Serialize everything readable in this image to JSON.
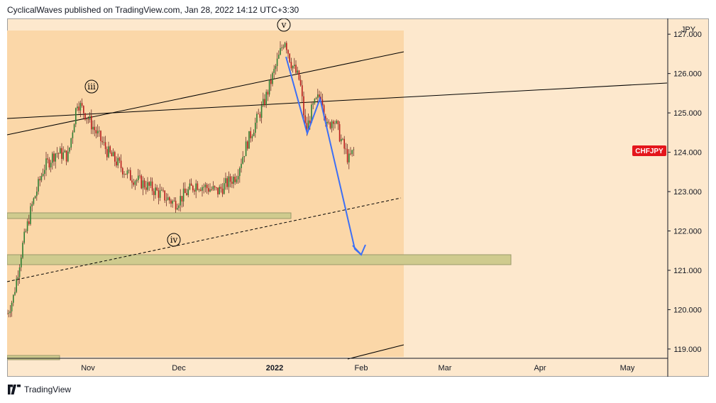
{
  "header": {
    "publish_line": "CyclicalWaves published on TradingView.com, Jan 28, 2022 14:12 UTC+3:30"
  },
  "footer": {
    "brand": "TradingView"
  },
  "chart_data": {
    "type": "candlestick",
    "symbol_tag": "CHFJPY",
    "currency_label": "JPY",
    "symbol_tag_color": "#e4161c",
    "background_color": "#fde8cd",
    "projection_zone_color": "#fbd7a8",
    "support_zone_color": "#cfcb8e",
    "arrow_color": "#3d6ff5",
    "y_axis": {
      "range": [
        118.8,
        127.4
      ],
      "ticks": [
        "127.000",
        "126.000",
        "125.000",
        "124.000",
        "123.000",
        "122.000",
        "121.000",
        "120.000",
        "119.000"
      ]
    },
    "x_axis": {
      "labels": [
        "Nov",
        "Dec",
        "2022",
        "Feb",
        "Mar",
        "Apr",
        "May"
      ]
    },
    "wave_labels": [
      "iii",
      "iv",
      "v"
    ],
    "approx_price_path": [
      {
        "date": "2021-10-06",
        "price": 119.9
      },
      {
        "date": "2021-10-08",
        "price": 120.3
      },
      {
        "date": "2021-10-11",
        "price": 121.6
      },
      {
        "date": "2021-10-14",
        "price": 122.6
      },
      {
        "date": "2021-10-18",
        "price": 123.6
      },
      {
        "date": "2021-10-22",
        "price": 124.0
      },
      {
        "date": "2021-10-26",
        "price": 123.9
      },
      {
        "date": "2021-10-29",
        "price": 125.3
      },
      {
        "date": "2021-11-02",
        "price": 124.8
      },
      {
        "date": "2021-11-08",
        "price": 124.0
      },
      {
        "date": "2021-11-15",
        "price": 123.4
      },
      {
        "date": "2021-11-22",
        "price": 123.1
      },
      {
        "date": "2021-11-30",
        "price": 122.7
      },
      {
        "date": "2021-12-07",
        "price": 123.2
      },
      {
        "date": "2021-12-14",
        "price": 123.0
      },
      {
        "date": "2021-12-20",
        "price": 123.4
      },
      {
        "date": "2021-12-24",
        "price": 124.3
      },
      {
        "date": "2021-12-29",
        "price": 125.2
      },
      {
        "date": "2022-01-03",
        "price": 126.4
      },
      {
        "date": "2022-01-05",
        "price": 126.9
      },
      {
        "date": "2022-01-07",
        "price": 126.3
      },
      {
        "date": "2022-01-10",
        "price": 125.8
      },
      {
        "date": "2022-01-12",
        "price": 124.5
      },
      {
        "date": "2022-01-14",
        "price": 125.1
      },
      {
        "date": "2022-01-17",
        "price": 125.5
      },
      {
        "date": "2022-01-19",
        "price": 124.6
      },
      {
        "date": "2022-01-21",
        "price": 124.9
      },
      {
        "date": "2022-01-24",
        "price": 124.2
      },
      {
        "date": "2022-01-26",
        "price": 123.8
      },
      {
        "date": "2022-01-28",
        "price": 124.1
      }
    ]
  }
}
